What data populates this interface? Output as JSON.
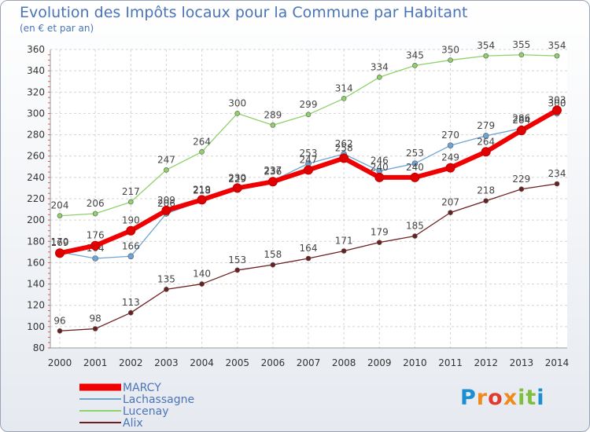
{
  "title": "Evolution des Impôts locaux pour la Commune par Habitant",
  "subtitle": "(en € et par an)",
  "logo": {
    "text": "Proxiti",
    "colors": [
      "#1b8fd1",
      "#f08a1c",
      "#e23b2e",
      "#f08a1c",
      "#7fbf3d",
      "#7fbf3d",
      "#1b8fd1"
    ]
  },
  "chart_data": {
    "type": "line",
    "x": [
      2000,
      2001,
      2002,
      2003,
      2004,
      2005,
      2006,
      2007,
      2008,
      2009,
      2010,
      2011,
      2012,
      2013,
      2014
    ],
    "ylim": [
      80,
      360
    ],
    "yticks": [
      80,
      100,
      120,
      140,
      160,
      180,
      200,
      220,
      240,
      260,
      280,
      300,
      320,
      340,
      360
    ],
    "grid": true,
    "legend": "bottom-left",
    "series": [
      {
        "name": "Alix",
        "color": "#6b1f1f",
        "values": [
          96,
          98,
          113,
          135,
          140,
          153,
          158,
          164,
          171,
          179,
          185,
          207,
          218,
          229,
          234
        ]
      },
      {
        "name": "Lucenay",
        "color": "#8fd16a",
        "values": [
          204,
          206,
          217,
          247,
          264,
          300,
          289,
          299,
          314,
          334,
          345,
          350,
          354,
          355,
          354
        ]
      },
      {
        "name": "Lachassagne",
        "color": "#6fa3d3",
        "values": [
          170,
          164,
          166,
          206,
          218,
          229,
          237,
          253,
          262,
          246,
          253,
          270,
          279,
          286,
          300
        ]
      },
      {
        "name": "MARCY",
        "color": "#f00000",
        "values": [
          169,
          176,
          190,
          209,
          219,
          230,
          236,
          247,
          258,
          240,
          240,
          249,
          264,
          284,
          303
        ]
      }
    ]
  }
}
